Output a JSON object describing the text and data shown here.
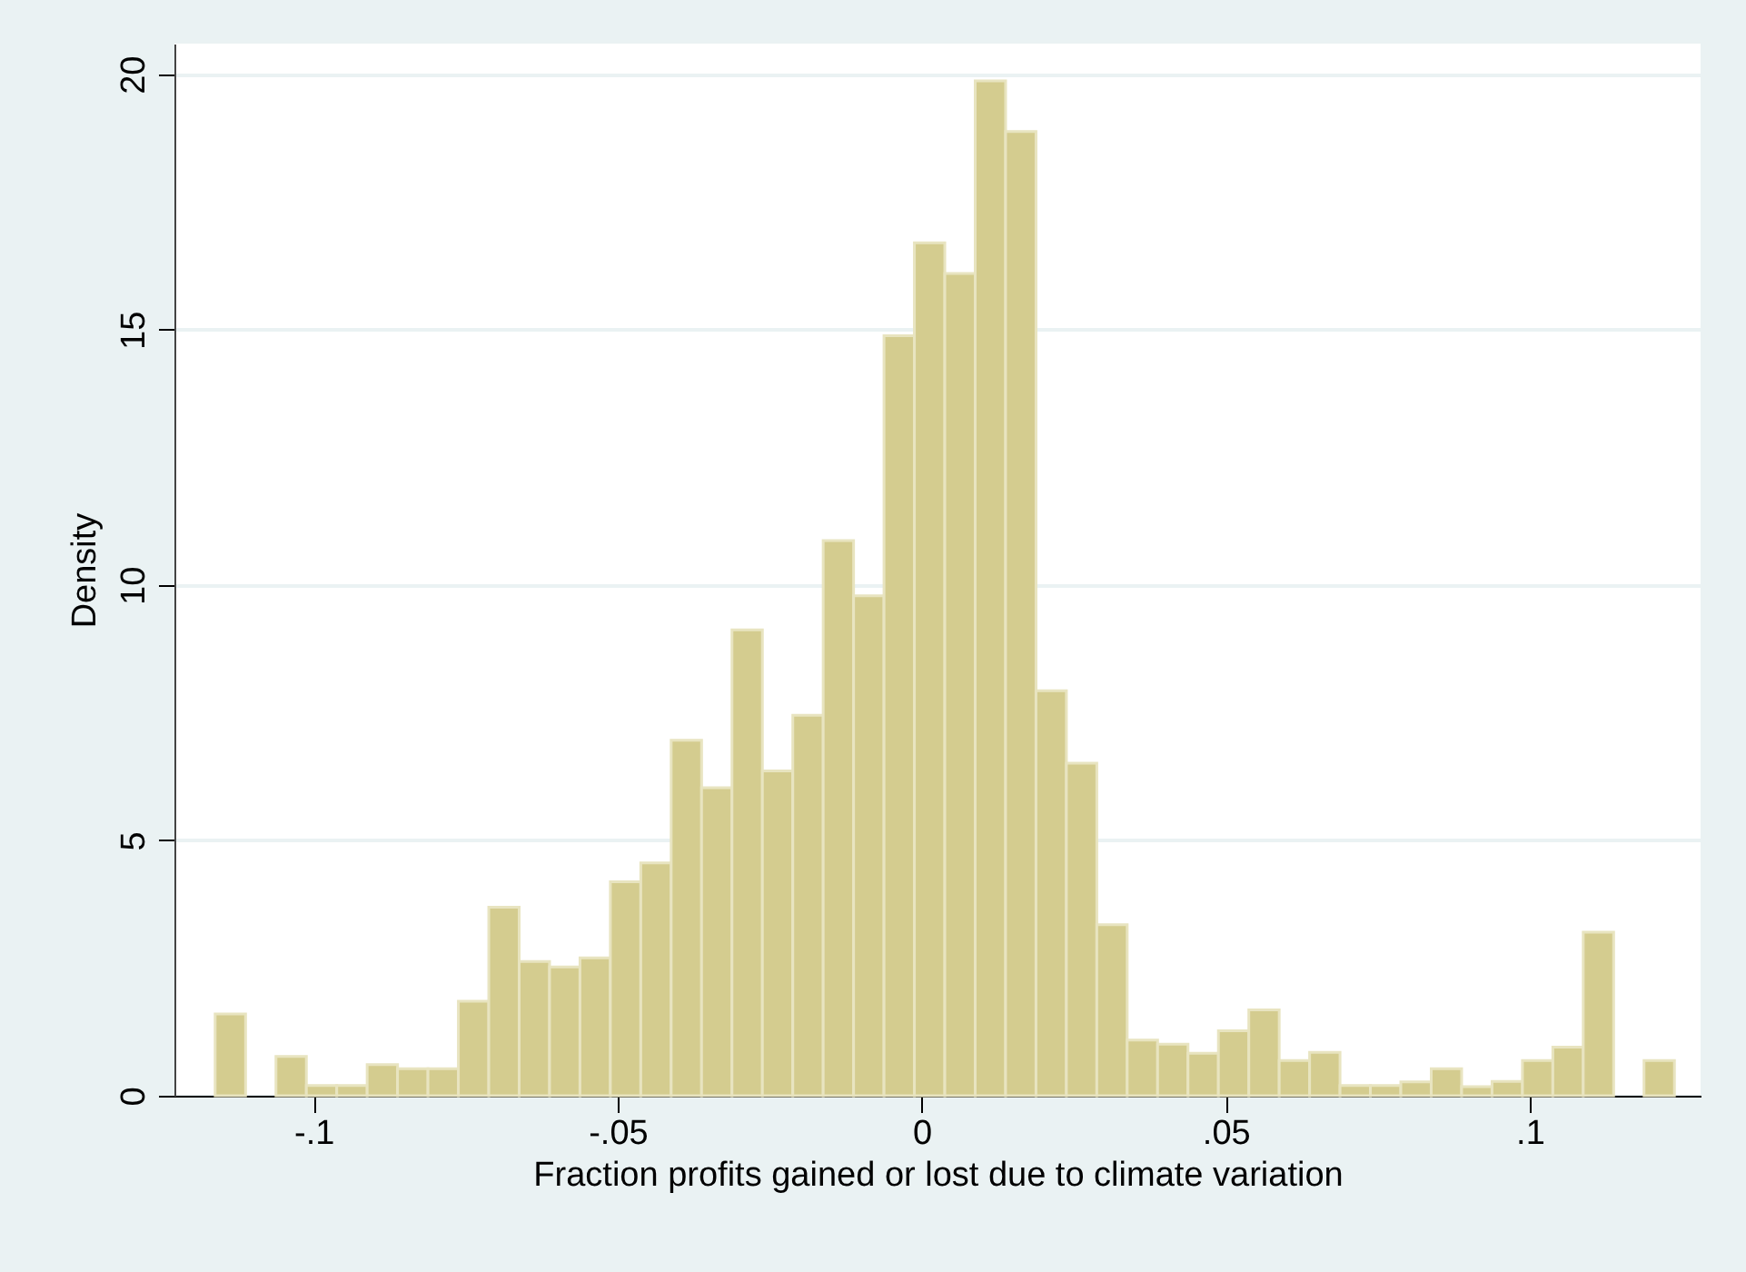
{
  "chart_data": {
    "type": "histogram",
    "xlabel": "Fraction profits gained or lost due to climate variation",
    "ylabel": "Density",
    "bins": [
      -0.1162,
      -0.1112,
      -0.1062,
      -0.1012,
      -0.0962,
      -0.0912,
      -0.0862,
      -0.0812,
      -0.0762,
      -0.0712,
      -0.0662,
      -0.0612,
      -0.0562,
      -0.0512,
      -0.0462,
      -0.0412,
      -0.0362,
      -0.0312,
      -0.0262,
      -0.0212,
      -0.0162,
      -0.0112,
      -0.0062,
      -0.0012,
      0.0038,
      0.0088,
      0.0138,
      0.0188,
      0.0238,
      0.0288,
      0.0338,
      0.0388,
      0.0438,
      0.0488,
      0.0538,
      0.0588,
      0.0638,
      0.0688,
      0.0738,
      0.0788,
      0.0838,
      0.0888,
      0.0938,
      0.0988,
      0.1038,
      0.1088,
      0.1138,
      0.1188,
      0.1238
    ],
    "values": [
      1.6,
      0,
      0.77,
      0.2,
      0.2,
      0.61,
      0.53,
      0.53,
      1.85,
      3.69,
      2.63,
      2.52,
      2.7,
      4.19,
      4.56,
      6.96,
      6.03,
      9.12,
      6.36,
      7.45,
      10.87,
      9.79,
      14.88,
      16.7,
      16.1,
      19.87,
      18.88,
      7.93,
      6.51,
      3.35,
      1.09,
      1.01,
      0.83,
      1.27,
      1.68,
      0.69,
      0.85,
      0.2,
      0.2,
      0.27,
      0.53,
      0.18,
      0.28,
      0.69,
      0.95,
      3.2,
      0,
      0.69
    ],
    "color": "#d4cc8f",
    "xlim": [
      -0.1229,
      0.1281
    ],
    "xticks": [
      {
        "value": -0.1,
        "label": "-.1"
      },
      {
        "value": -0.05,
        "label": "-.05"
      },
      0,
      {
        "value": 0.05,
        "label": ".05"
      },
      {
        "value": 0.1,
        "label": ".1"
      }
    ],
    "ylim": [
      0,
      20.6
    ],
    "yticks": [
      0,
      5,
      10,
      15,
      20
    ],
    "grid": "y"
  }
}
